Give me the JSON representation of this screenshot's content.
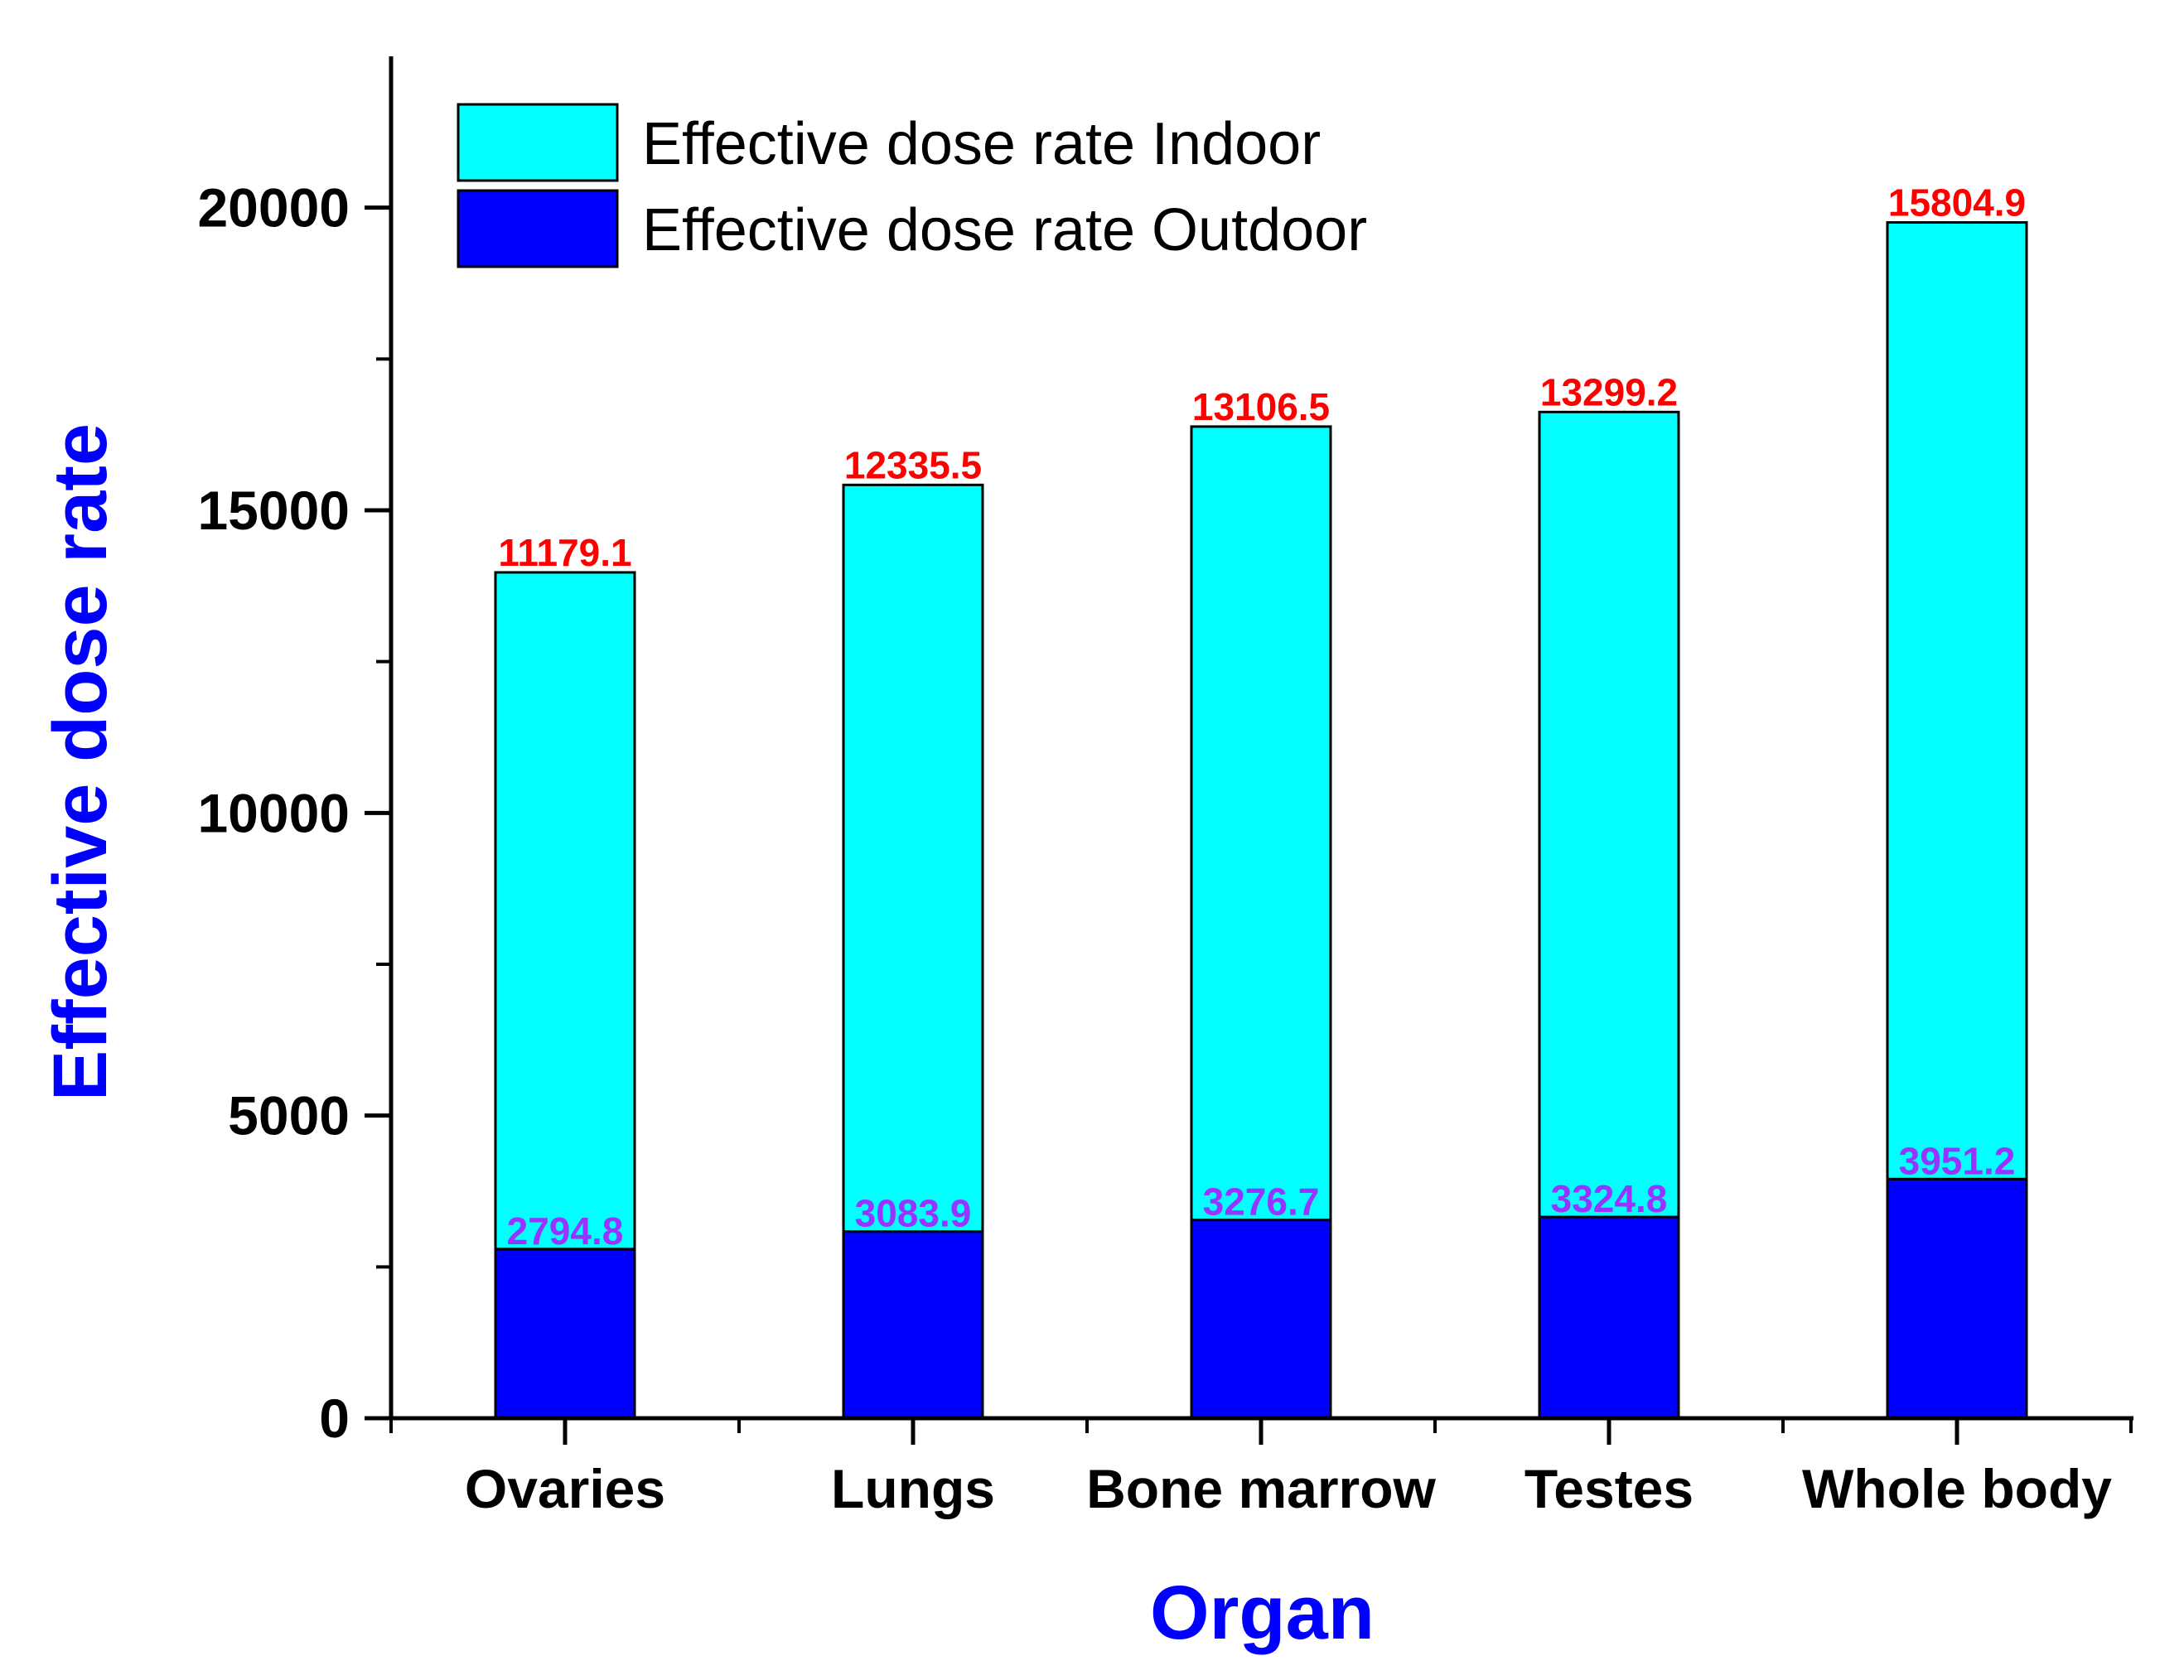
{
  "chart_data": {
    "type": "bar",
    "stacked": true,
    "title": "",
    "xlabel": "Organ",
    "ylabel": "Effective dose rate",
    "categories": [
      "Ovaries",
      "Lungs",
      "Bone marrow",
      "Testes",
      "Whole body"
    ],
    "series": [
      {
        "name": "Effective dose rate Outdoor",
        "values": [
          2794.8,
          3083.9,
          3276.7,
          3324.8,
          3951.2
        ],
        "labels": [
          "2794.8",
          "3083.9",
          "3276.7",
          "3324.8",
          "3951.2"
        ]
      },
      {
        "name": "Effective dose rate Indoor",
        "values": [
          11179.1,
          12335.5,
          13106.5,
          13299.2,
          15804.9
        ],
        "labels": [
          "11179.1",
          "12335.5",
          "13106.5",
          "13299.2",
          "15804.9"
        ]
      }
    ],
    "ylim": [
      0,
      22500
    ],
    "yticks": [
      0,
      5000,
      10000,
      15000,
      20000
    ],
    "ytick_labels": [
      "0",
      "5000",
      "10000",
      "15000",
      "20000"
    ],
    "legend_position": "top-left",
    "grid": false
  },
  "colors": {
    "indoor": "#00FFFF",
    "outdoor": "#0000FF",
    "axis_title": "#0000FF",
    "indoor_label": "#FF0000",
    "outdoor_label": "#9933FF",
    "axis": "#000000"
  }
}
